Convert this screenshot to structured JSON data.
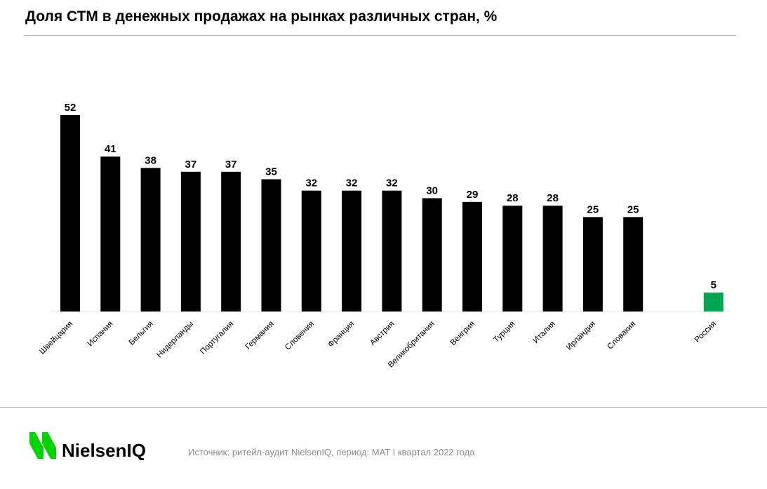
{
  "title": "Доля СТМ в денежных продажах на рынках различных стран, %",
  "source": "Источник: ритейл-аудит NielsenIQ, период: MAT I квартал 2022 года",
  "logo": {
    "name": "NielsenIQ",
    "icon": "nielseniq-logo-icon"
  },
  "colors": {
    "bar": "#000000",
    "highlight": "#00a651",
    "text": "#000000",
    "muted": "#8a8a8a",
    "rule": "#b5b5b5",
    "logo_green": "#00d400"
  },
  "chart_data": {
    "type": "bar",
    "title": "Доля СТМ в денежных продажах на рынках различных стран, %",
    "xlabel": "",
    "ylabel": "",
    "grid": false,
    "legend": "none",
    "ylim": [
      0,
      52
    ],
    "categories": [
      "Швейцария",
      "Испания",
      "Бельгия",
      "Нидерланды",
      "Португалия",
      "Германия",
      "Словения",
      "Франция",
      "Австрия",
      "Великобритания",
      "Венгрия",
      "Турция",
      "Италия",
      "Ирландия",
      "Словакия",
      "Россия"
    ],
    "values": [
      52,
      41,
      38,
      37,
      37,
      35,
      32,
      32,
      32,
      30,
      29,
      28,
      28,
      25,
      25,
      5
    ],
    "highlight": [
      "Россия"
    ]
  }
}
